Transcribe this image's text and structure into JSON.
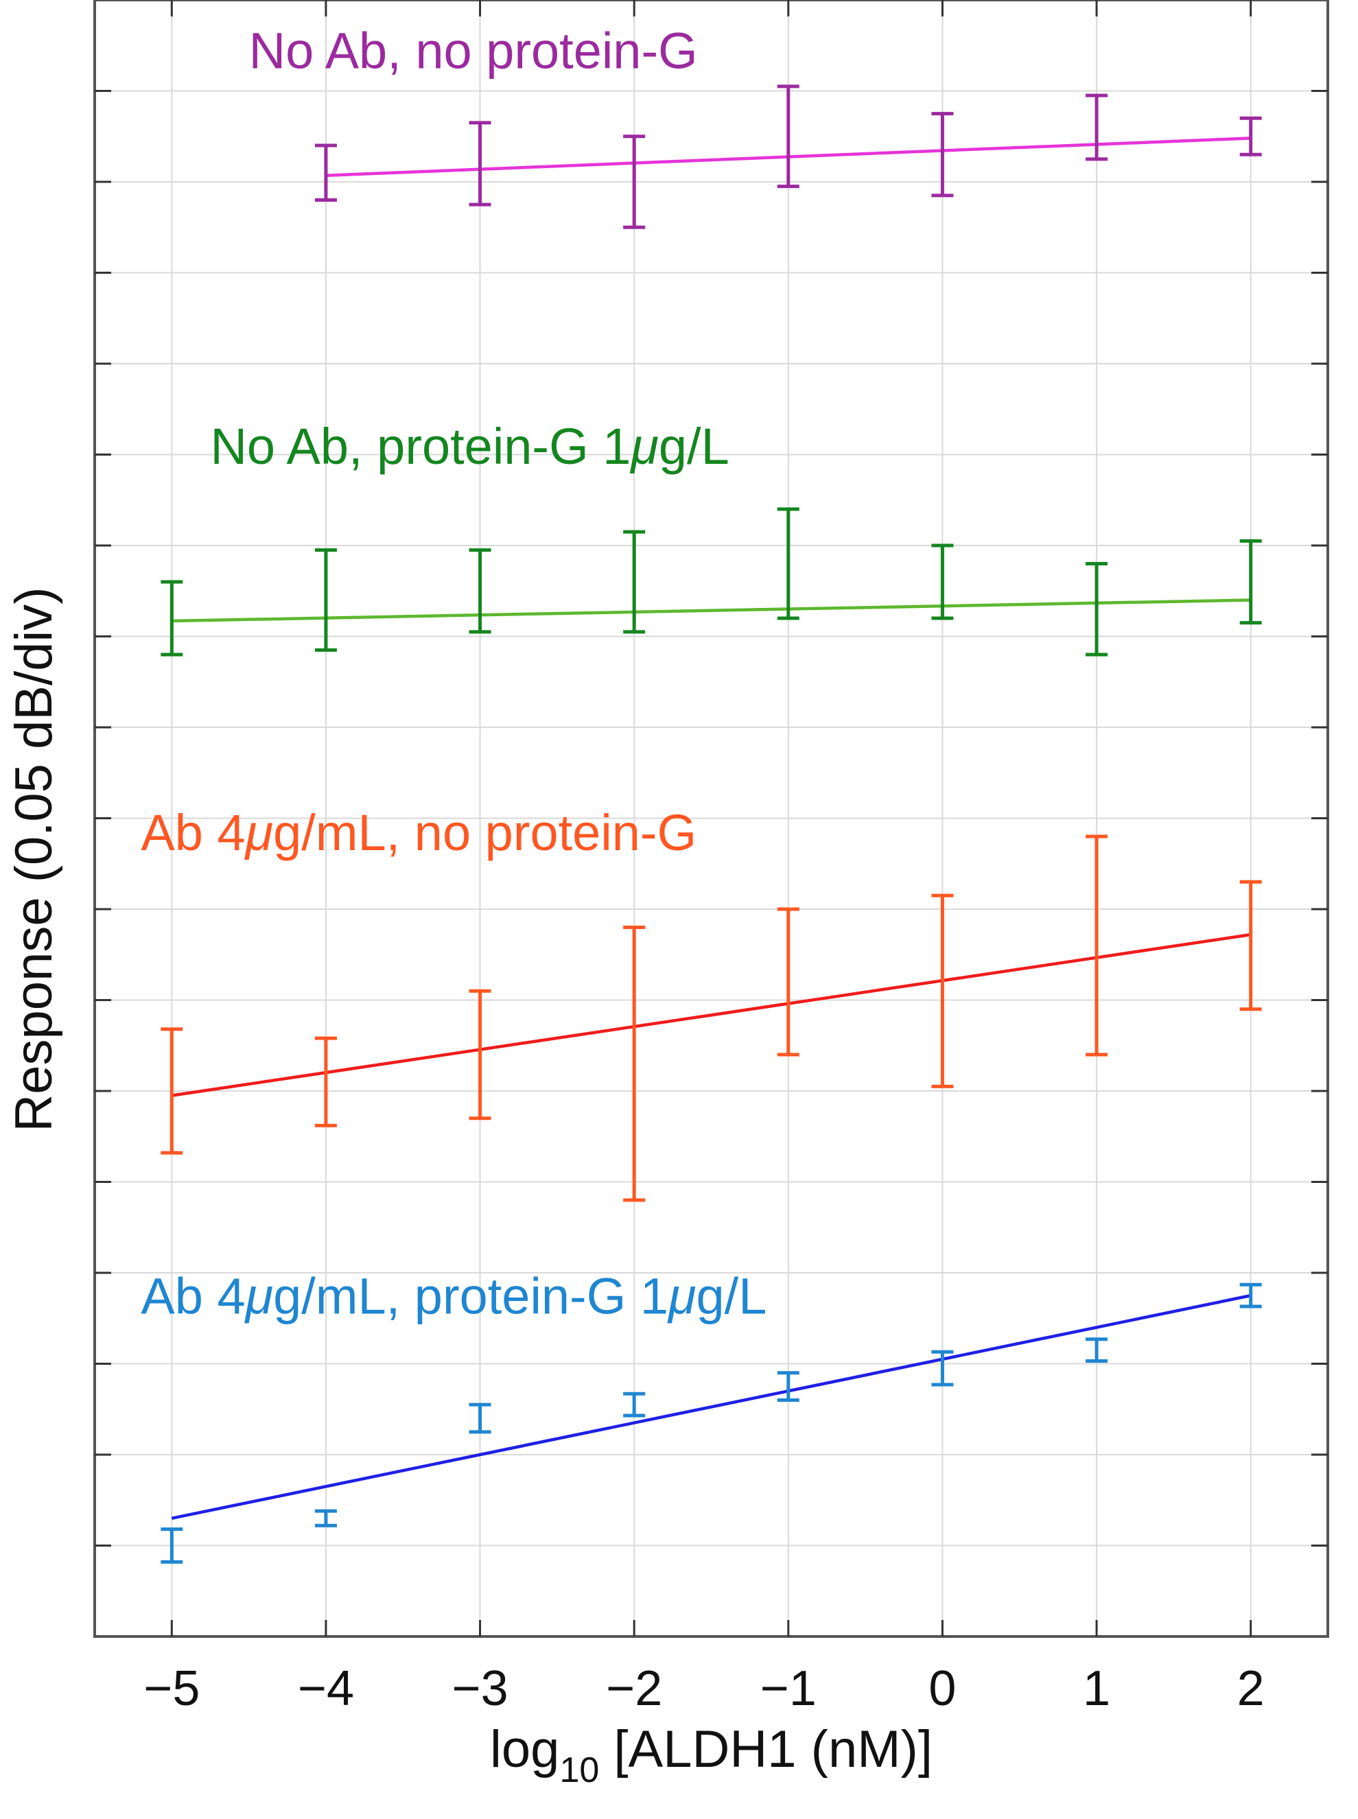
{
  "chart_data": {
    "type": "line",
    "title": "",
    "xlabel_main": "log",
    "xlabel_sub": "10",
    "xlabel_rest": " [ALDH1 (nM)]",
    "ylabel": "Response (0.05 dB/div)",
    "xlim": [
      -5.5,
      2.5
    ],
    "ylim": [
      0,
      18
    ],
    "grid": true,
    "x_ticks": [
      -5,
      -4,
      -3,
      -2,
      -1,
      0,
      1,
      2
    ],
    "x_tick_labels": [
      "−5",
      "−4",
      "−3",
      "−2",
      "−1",
      "0",
      "1",
      "2"
    ],
    "y_divisions": [
      1,
      2,
      3,
      4,
      5,
      6,
      7,
      8,
      9,
      10,
      11,
      12,
      13,
      14,
      15,
      16,
      17
    ],
    "series": [
      {
        "name": "No Ab, no protein-G",
        "label_parts": [
          "No Ab, no protein-G"
        ],
        "marker_color": "#9b2a9f",
        "line_color": "#e633d9",
        "x": [
          -4,
          -3,
          -2,
          -1,
          0,
          1,
          2
        ],
        "y": [
          16.1,
          16.2,
          16.0,
          16.5,
          16.3,
          16.6,
          16.5
        ],
        "err": [
          0.3,
          0.45,
          0.5,
          0.55,
          0.45,
          0.35,
          0.2
        ],
        "fit": [
          16.07,
          16.48
        ]
      },
      {
        "name": "No Ab, protein-G 1μg/L",
        "label_parts": [
          "No Ab, protein-G 1",
          "μ",
          "g/L"
        ],
        "marker_color": "#14861f",
        "line_color": "#5db82e",
        "x": [
          -5,
          -4,
          -3,
          -2,
          -1,
          0,
          1,
          2
        ],
        "y": [
          11.2,
          11.4,
          11.5,
          11.6,
          11.8,
          11.6,
          11.3,
          11.6
        ],
        "err": [
          0.4,
          0.55,
          0.45,
          0.55,
          0.6,
          0.4,
          0.5,
          0.45
        ],
        "fit": [
          11.17,
          11.4
        ]
      },
      {
        "name": "Ab 4μg/mL, no protein-G",
        "label_parts": [
          "Ab 4",
          "μ",
          "g/mL, no protein-G"
        ],
        "marker_color": "#ff5722",
        "line_color": "#f01c1c",
        "x": [
          -5,
          -4,
          -3,
          -2,
          -1,
          0,
          1,
          2
        ],
        "y": [
          6.0,
          6.1,
          6.4,
          6.3,
          7.2,
          7.1,
          7.6,
          7.6
        ],
        "err": [
          0.68,
          0.48,
          0.7,
          1.5,
          0.8,
          1.05,
          1.2,
          0.7
        ],
        "fit": [
          5.95,
          7.72
        ]
      },
      {
        "name": "Ab 4μg/mL, protein-G 1μg/L",
        "label_parts": [
          "Ab 4",
          "μ",
          "g/mL, protein-G 1",
          "μ",
          "g/L"
        ],
        "marker_color": "#1f86d1",
        "line_color": "#1f1fe6",
        "x": [
          -5,
          -4,
          -3,
          -2,
          -1,
          0,
          1,
          2
        ],
        "y": [
          1.0,
          1.3,
          2.4,
          2.55,
          2.75,
          2.95,
          3.15,
          3.75
        ],
        "err": [
          0.18,
          0.08,
          0.15,
          0.12,
          0.15,
          0.18,
          0.12,
          0.12
        ],
        "fit": [
          1.3,
          3.75
        ]
      }
    ],
    "labels": [
      {
        "series": 0,
        "x": -4.5,
        "y": 17.25
      },
      {
        "series": 1,
        "x": -4.75,
        "y": 12.9
      },
      {
        "series": 2,
        "x": -5.2,
        "y": 8.65
      },
      {
        "series": 3,
        "x": -5.2,
        "y": 3.55
      }
    ]
  }
}
